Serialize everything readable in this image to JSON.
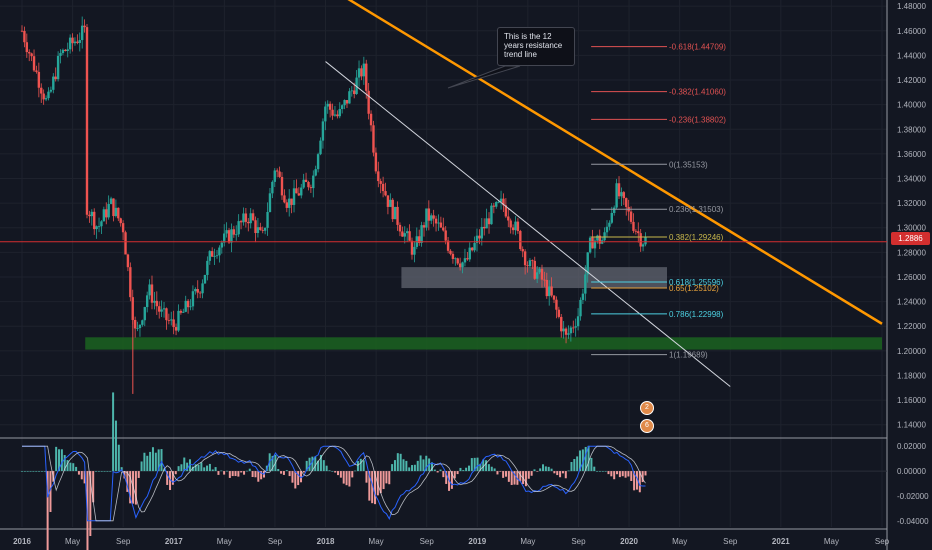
{
  "chart_data": {
    "type": "candlestick",
    "price_axis": {
      "ylim": [
        1.13,
        1.485
      ],
      "ticks": [
        "1.48000",
        "1.46000",
        "1.44000",
        "1.42000",
        "1.40000",
        "1.38000",
        "1.36000",
        "1.34000",
        "1.32000",
        "1.30000",
        "1.28000",
        "1.26000",
        "1.24000",
        "1.22000",
        "1.20000",
        "1.18000",
        "1.16000",
        "1.14000"
      ],
      "current_price": "1.2886",
      "current_value": 1.2886
    },
    "x_axis": {
      "range": [
        "2016-01",
        "2021-09"
      ],
      "ticks": [
        {
          "label": "2016",
          "date": "2016-01"
        },
        {
          "label": "May",
          "date": "2016-05"
        },
        {
          "label": "Sep",
          "date": "2016-09"
        },
        {
          "label": "2017",
          "date": "2017-01"
        },
        {
          "label": "May",
          "date": "2017-05"
        },
        {
          "label": "Sep",
          "date": "2017-09"
        },
        {
          "label": "2018",
          "date": "2018-01"
        },
        {
          "label": "May",
          "date": "2018-05"
        },
        {
          "label": "Sep",
          "date": "2018-09"
        },
        {
          "label": "2019",
          "date": "2019-01"
        },
        {
          "label": "May",
          "date": "2019-05"
        },
        {
          "label": "Sep",
          "date": "2019-09"
        },
        {
          "label": "2020",
          "date": "2020-01"
        },
        {
          "label": "May",
          "date": "2020-05"
        },
        {
          "label": "Sep",
          "date": "2020-09"
        },
        {
          "label": "2021",
          "date": "2021-01"
        },
        {
          "label": "May",
          "date": "2021-05"
        },
        {
          "label": "Sep",
          "date": "2021-09"
        }
      ]
    },
    "price_path": [
      [
        "2016-01",
        1.46
      ],
      [
        "2016-03",
        1.4
      ],
      [
        "2016-04",
        1.44
      ],
      [
        "2016-06",
        1.46
      ],
      [
        "2016-06",
        1.32
      ],
      [
        "2016-07",
        1.3
      ],
      [
        "2016-08",
        1.32
      ],
      [
        "2016-09",
        1.3
      ],
      [
        "2016-10",
        1.21
      ],
      [
        "2016-11",
        1.25
      ],
      [
        "2016-12",
        1.23
      ],
      [
        "2017-01",
        1.22
      ],
      [
        "2017-03",
        1.25
      ],
      [
        "2017-04",
        1.28
      ],
      [
        "2017-05",
        1.29
      ],
      [
        "2017-07",
        1.31
      ],
      [
        "2017-08",
        1.29
      ],
      [
        "2017-09",
        1.35
      ],
      [
        "2017-10",
        1.32
      ],
      [
        "2017-11",
        1.33
      ],
      [
        "2017-12",
        1.34
      ],
      [
        "2018-01",
        1.4
      ],
      [
        "2018-02",
        1.39
      ],
      [
        "2018-03",
        1.41
      ],
      [
        "2018-04",
        1.43
      ],
      [
        "2018-05",
        1.35
      ],
      [
        "2018-06",
        1.32
      ],
      [
        "2018-08",
        1.28
      ],
      [
        "2018-09",
        1.31
      ],
      [
        "2018-10",
        1.3
      ],
      [
        "2018-11",
        1.28
      ],
      [
        "2018-12",
        1.27
      ],
      [
        "2019-01",
        1.29
      ],
      [
        "2019-02",
        1.31
      ],
      [
        "2019-03",
        1.32
      ],
      [
        "2019-04",
        1.3
      ],
      [
        "2019-05",
        1.27
      ],
      [
        "2019-06",
        1.26
      ],
      [
        "2019-07",
        1.24
      ],
      [
        "2019-08",
        1.21
      ],
      [
        "2019-09",
        1.23
      ],
      [
        "2019-10",
        1.29
      ],
      [
        "2019-11",
        1.29
      ],
      [
        "2019-12",
        1.33
      ],
      [
        "2020-01",
        1.31
      ],
      [
        "2020-02",
        1.29
      ]
    ],
    "resistance_trendline": [
      [
        "2017-01",
        1.572
      ],
      [
        "2021-09",
        1.222
      ]
    ],
    "secondary_trendline": [
      [
        "2018-01",
        1.435
      ],
      [
        "2020-09",
        1.171
      ]
    ],
    "zones": [
      {
        "from": "2018-07",
        "to": "2020-04",
        "low": 1.251,
        "high": 1.268,
        "color": "#5d606b"
      },
      {
        "from": "2016-06",
        "to": "2021-09",
        "low": 1.201,
        "high": 1.211,
        "color": "#1b5e20"
      }
    ],
    "fibonacci": {
      "x_from": "2019-10",
      "x_to": "2020-04",
      "levels": [
        {
          "label": "-0.618(1.44709)",
          "value": 1.44709,
          "color": "#e05252"
        },
        {
          "label": "-0.382(1.41060)",
          "value": 1.4106,
          "color": "#e05252"
        },
        {
          "label": "-0.236(1.38802)",
          "value": 1.38802,
          "color": "#e05252"
        },
        {
          "label": "0(1.35153)",
          "value": 1.35153,
          "color": "#9598a1"
        },
        {
          "label": "0.236(1.31503)",
          "value": 1.31503,
          "color": "#9598a1"
        },
        {
          "label": "0.382(1.29246)",
          "value": 1.29246,
          "color": "#c9b84c"
        },
        {
          "label": "0.618(1.25596)",
          "value": 1.25596,
          "color": "#4dd0e1"
        },
        {
          "label": "0.65(1.25102)",
          "value": 1.25102,
          "color": "#e8a33c"
        },
        {
          "label": "0.786(1.22998)",
          "value": 1.22998,
          "color": "#4dd0e1"
        },
        {
          "label": "1(1.19689)",
          "value": 1.19689,
          "color": "#9598a1"
        }
      ]
    },
    "annotation": {
      "lines": [
        "This is the 12",
        "years resistance",
        "trend line"
      ]
    },
    "oscillator": {
      "ylim": [
        -0.045,
        0.025
      ],
      "ticks": [
        "0.02000",
        "0.00000",
        "-0.02000",
        "-0.04000"
      ]
    },
    "events": [
      {
        "label": "2"
      },
      {
        "label": "6"
      }
    ],
    "colors": {
      "up": "#26a69a",
      "down": "#ef5350",
      "resistance": "#ff9800",
      "trend": "#d1d4dc"
    }
  }
}
